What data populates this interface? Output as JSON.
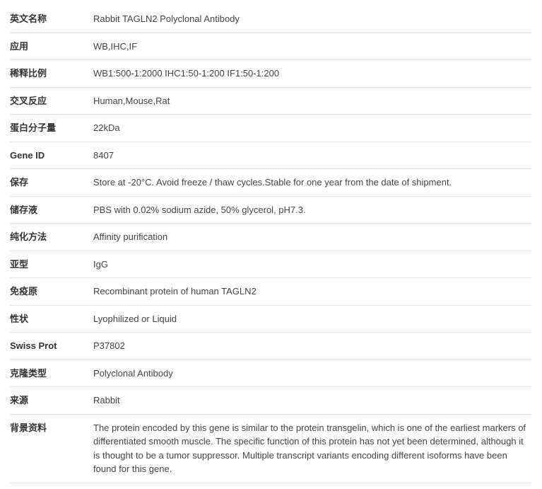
{
  "rows": [
    {
      "label": "英文名称",
      "value": "Rabbit TAGLN2 Polyclonal Antibody"
    },
    {
      "label": "应用",
      "value": "WB,IHC,IF"
    },
    {
      "label": "稀释比例",
      "value": "WB1:500-1:2000 IHC1:50-1:200 IF1:50-1:200"
    },
    {
      "label": "交叉反应",
      "value": "Human,Mouse,Rat"
    },
    {
      "label": "蛋白分子量",
      "value": "22kDa"
    },
    {
      "label": "Gene ID",
      "value": "8407"
    },
    {
      "label": "保存",
      "value": "Store at -20°C. Avoid freeze / thaw cycles.Stable for one year from the date of shipment."
    },
    {
      "label": "储存液",
      "value": "PBS with 0.02% sodium azide, 50% glycerol, pH7.3."
    },
    {
      "label": "纯化方法",
      "value": "Affinity purification"
    },
    {
      "label": "亚型",
      "value": "IgG"
    },
    {
      "label": "免疫原",
      "value": "Recombinant protein of human TAGLN2"
    },
    {
      "label": "性状",
      "value": "Lyophilized or Liquid"
    },
    {
      "label": "Swiss Prot",
      "value": "P37802"
    },
    {
      "label": "克隆类型",
      "value": "Polyclonal Antibody"
    },
    {
      "label": "来源",
      "value": "Rabbit"
    },
    {
      "label": "背景资料",
      "value": "The protein encoded by this gene is similar to the protein transgelin, which is one of the earliest markers of differentiated smooth muscle. The specific function of this protein has not yet been determined, although it is thought to be a tumor suppressor. Multiple transcript variants encoding different isoforms have been found for this gene."
    }
  ]
}
